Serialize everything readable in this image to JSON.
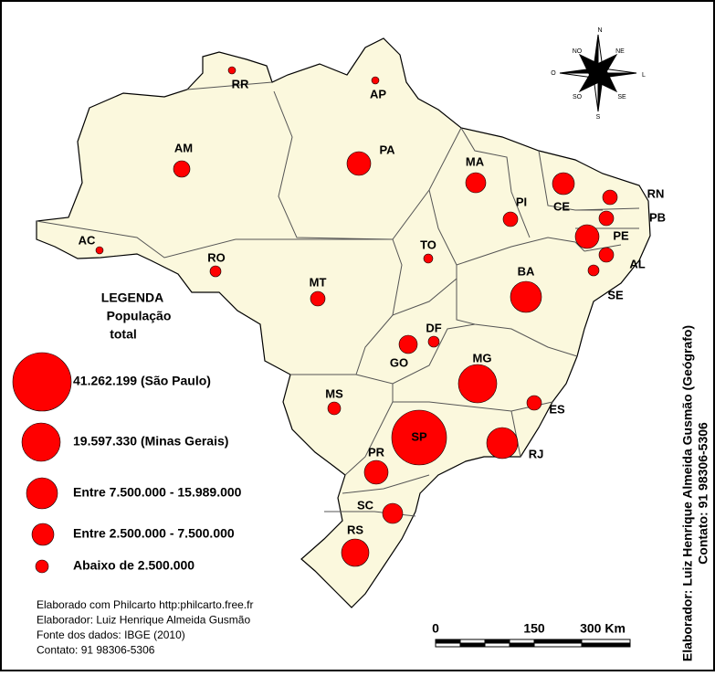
{
  "legend": {
    "heading": [
      "LEGENDA",
      "População",
      "total"
    ],
    "items": [
      "41.262.199 (São Paulo)",
      "19.597.330 (Minas Gerais)",
      "Entre 7.500.000 - 15.989.000",
      "Entre 2.500.000 - 7.500.000",
      "Abaixo de 2.500.000"
    ]
  },
  "states": [
    "RR",
    "AP",
    "AM",
    "PA",
    "MA",
    "PI",
    "CE",
    "RN",
    "PB",
    "PE",
    "AL",
    "SE",
    "AC",
    "RO",
    "TO",
    "MT",
    "BA",
    "DF",
    "GO",
    "MG",
    "MS",
    "ES",
    "SP",
    "RJ",
    "PR",
    "SC",
    "RS"
  ],
  "credits": [
    "Elaborado com Philcarto http:philcarto.free.fr",
    "Elaborador: Luiz Henrique Almeida Gusmão",
    "Fonte dos dados: IBGE (2010)",
    "Contato: 91 98306-5306"
  ],
  "side_credits": [
    "Elaborador: Luiz Henrique Almeida Gusmão (Geógrafo)",
    "Contato: 91 98306-5306"
  ],
  "scale": [
    "0",
    "150",
    "300 Km"
  ],
  "compass": [
    "N",
    "NE",
    "L",
    "SE",
    "S",
    "SO",
    "O",
    "NO"
  ]
}
